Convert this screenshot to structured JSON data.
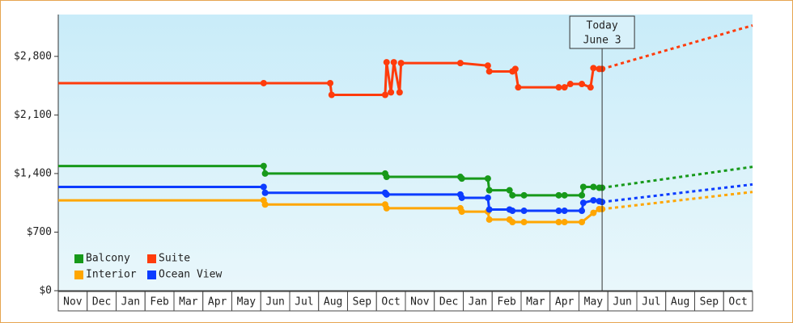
{
  "chart_data": {
    "type": "step-line",
    "categories": [
      "Nov",
      "Dec",
      "Jan",
      "Feb",
      "Mar",
      "Apr",
      "May",
      "Jun",
      "Jul",
      "Aug",
      "Sep",
      "Oct",
      "Nov",
      "Dec",
      "Jan",
      "Feb",
      "Mar",
      "Apr",
      "May",
      "Jun",
      "Jul",
      "Aug",
      "Sep",
      "Oct"
    ],
    "xlim": [
      0,
      24
    ],
    "ylim": [
      0,
      3300
    ],
    "yticks": [
      {
        "value": 0,
        "label": "$0"
      },
      {
        "value": 700,
        "label": "$700"
      },
      {
        "value": 1400,
        "label": "$1,400"
      },
      {
        "value": 2100,
        "label": "$2,100"
      },
      {
        "value": 2800,
        "label": "$2,800"
      }
    ],
    "today": {
      "x": 18.8,
      "label": "Today",
      "date": "June 3"
    },
    "legend": "bottom-left",
    "series": [
      {
        "name": "Balcony",
        "color": "#17991a",
        "x": [
          0,
          7.1,
          7.15,
          11.3,
          11.35,
          13.9,
          13.95,
          14.85,
          14.9,
          15.6,
          15.7,
          16.1,
          17.3,
          17.5,
          18.1,
          18.15,
          18.5,
          18.7,
          18.8
        ],
        "values": [
          1490,
          1490,
          1400,
          1400,
          1360,
          1360,
          1340,
          1340,
          1200,
          1200,
          1140,
          1140,
          1140,
          1140,
          1140,
          1240,
          1240,
          1230,
          1230
        ],
        "forecast": {
          "x": [
            18.8,
            24
          ],
          "values": [
            1230,
            1480
          ]
        }
      },
      {
        "name": "Suite",
        "color": "#ff3c0c",
        "x": [
          0,
          7.1,
          9.4,
          9.45,
          11.3,
          11.35,
          11.5,
          11.6,
          11.8,
          11.85,
          13.9,
          14.85,
          14.9,
          15.7,
          15.8,
          15.9,
          17.3,
          17.5,
          17.7,
          18.1,
          18.4,
          18.5,
          18.7,
          18.8
        ],
        "values": [
          2480,
          2480,
          2480,
          2340,
          2340,
          2730,
          2370,
          2730,
          2370,
          2720,
          2720,
          2690,
          2620,
          2620,
          2650,
          2430,
          2430,
          2430,
          2470,
          2470,
          2430,
          2660,
          2650,
          2650
        ],
        "forecast": {
          "x": [
            18.8,
            24
          ],
          "values": [
            2650,
            3170
          ]
        }
      },
      {
        "name": "Interior",
        "color": "#ffa600",
        "x": [
          0,
          7.1,
          7.15,
          11.3,
          11.35,
          13.9,
          13.95,
          14.85,
          14.9,
          15.6,
          15.7,
          16.1,
          17.3,
          17.5,
          18.1,
          18.5,
          18.7,
          18.8
        ],
        "values": [
          1080,
          1080,
          1030,
          1030,
          985,
          985,
          945,
          945,
          850,
          850,
          820,
          820,
          820,
          820,
          820,
          930,
          975,
          975
        ],
        "forecast": {
          "x": [
            18.8,
            24
          ],
          "values": [
            975,
            1180
          ]
        }
      },
      {
        "name": "Ocean View",
        "color": "#0c3cff",
        "x": [
          0,
          7.1,
          7.15,
          11.3,
          11.35,
          13.9,
          13.95,
          14.85,
          14.9,
          15.6,
          15.7,
          16.1,
          17.3,
          17.5,
          18.1,
          18.15,
          18.5,
          18.7,
          18.8
        ],
        "values": [
          1240,
          1240,
          1170,
          1170,
          1150,
          1150,
          1110,
          1110,
          970,
          970,
          955,
          955,
          955,
          955,
          955,
          1050,
          1080,
          1070,
          1060
        ],
        "forecast": {
          "x": [
            18.8,
            24
          ],
          "values": [
            1060,
            1270
          ]
        }
      }
    ]
  }
}
